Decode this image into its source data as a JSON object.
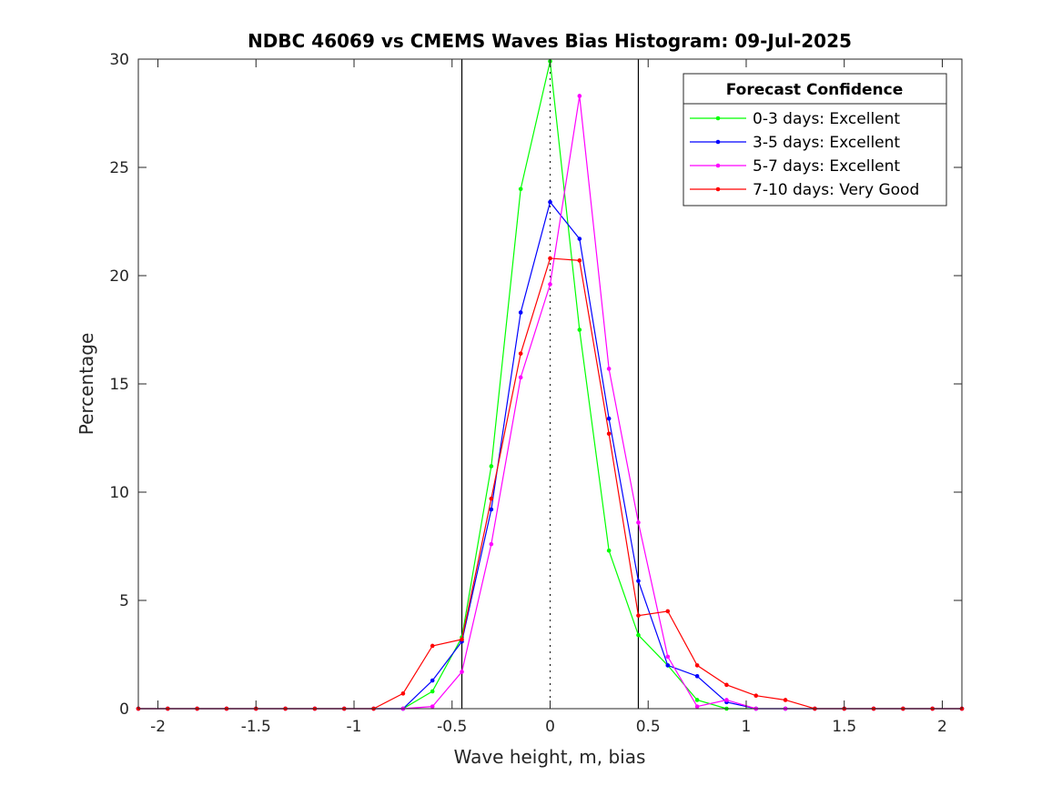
{
  "chart_data": {
    "type": "line",
    "title": "NDBC 46069 vs CMEMS Waves Bias Histogram: 09-Jul-2025",
    "xlabel": "Wave height, m, bias",
    "ylabel": "Percentage",
    "xlim": [
      -2.1,
      2.1
    ],
    "ylim": [
      0,
      30
    ],
    "xticks": [
      -2,
      -1.5,
      -1,
      -0.5,
      0,
      0.5,
      1,
      1.5,
      2
    ],
    "xtick_labels": [
      "-2",
      "-1.5",
      "-1",
      "-0.5",
      "0",
      "0.5",
      "1",
      "1.5",
      "2"
    ],
    "yticks": [
      0,
      5,
      10,
      15,
      20,
      25,
      30
    ],
    "ytick_labels": [
      "0",
      "5",
      "10",
      "15",
      "20",
      "25",
      "30"
    ],
    "grid": false,
    "legend_title": "Forecast Confidence",
    "legend_position": "top-right",
    "reference_lines": {
      "solid": [
        -0.45,
        0.45
      ],
      "dotted": [
        0
      ]
    },
    "x": [
      -2.1,
      -1.95,
      -1.8,
      -1.65,
      -1.5,
      -1.35,
      -1.2,
      -1.05,
      -0.9,
      -0.75,
      -0.6,
      -0.45,
      -0.3,
      -0.15,
      0,
      0.15,
      0.3,
      0.45,
      0.6,
      0.75,
      0.9,
      1.05,
      1.2,
      1.35,
      1.5,
      1.65,
      1.8,
      1.95,
      2.1
    ],
    "series": [
      {
        "name": "0-3 days: Excellent",
        "color": "#00ff00",
        "values": [
          0,
          0,
          0,
          0,
          0,
          0,
          0,
          0,
          0,
          0,
          0.8,
          3.3,
          11.2,
          24.0,
          29.9,
          17.5,
          7.3,
          3.4,
          2.0,
          0.4,
          0,
          0,
          0,
          0,
          0,
          0,
          0,
          0,
          0
        ]
      },
      {
        "name": "3-5 days: Excellent",
        "color": "#0000ff",
        "values": [
          0,
          0,
          0,
          0,
          0,
          0,
          0,
          0,
          0,
          0,
          1.3,
          3.1,
          9.2,
          18.3,
          23.4,
          21.7,
          13.4,
          5.9,
          2.0,
          1.5,
          0.3,
          0,
          0,
          0,
          0,
          0,
          0,
          0,
          0
        ]
      },
      {
        "name": "5-7 days: Excellent",
        "color": "#ff00ff",
        "values": [
          0,
          0,
          0,
          0,
          0,
          0,
          0,
          0,
          0,
          0,
          0.1,
          1.7,
          7.6,
          15.3,
          19.6,
          28.3,
          15.7,
          8.6,
          2.4,
          0.1,
          0.4,
          0,
          0,
          0,
          0,
          0,
          0,
          0,
          0
        ]
      },
      {
        "name": "7-10 days: Very Good",
        "color": "#ff0000",
        "values": [
          0,
          0,
          0,
          0,
          0,
          0,
          0,
          0,
          0,
          0.7,
          2.9,
          3.2,
          9.7,
          16.4,
          20.8,
          20.7,
          12.7,
          4.3,
          4.5,
          2.0,
          1.1,
          0.6,
          0.4,
          0,
          0,
          0,
          0,
          0,
          0
        ]
      }
    ]
  }
}
